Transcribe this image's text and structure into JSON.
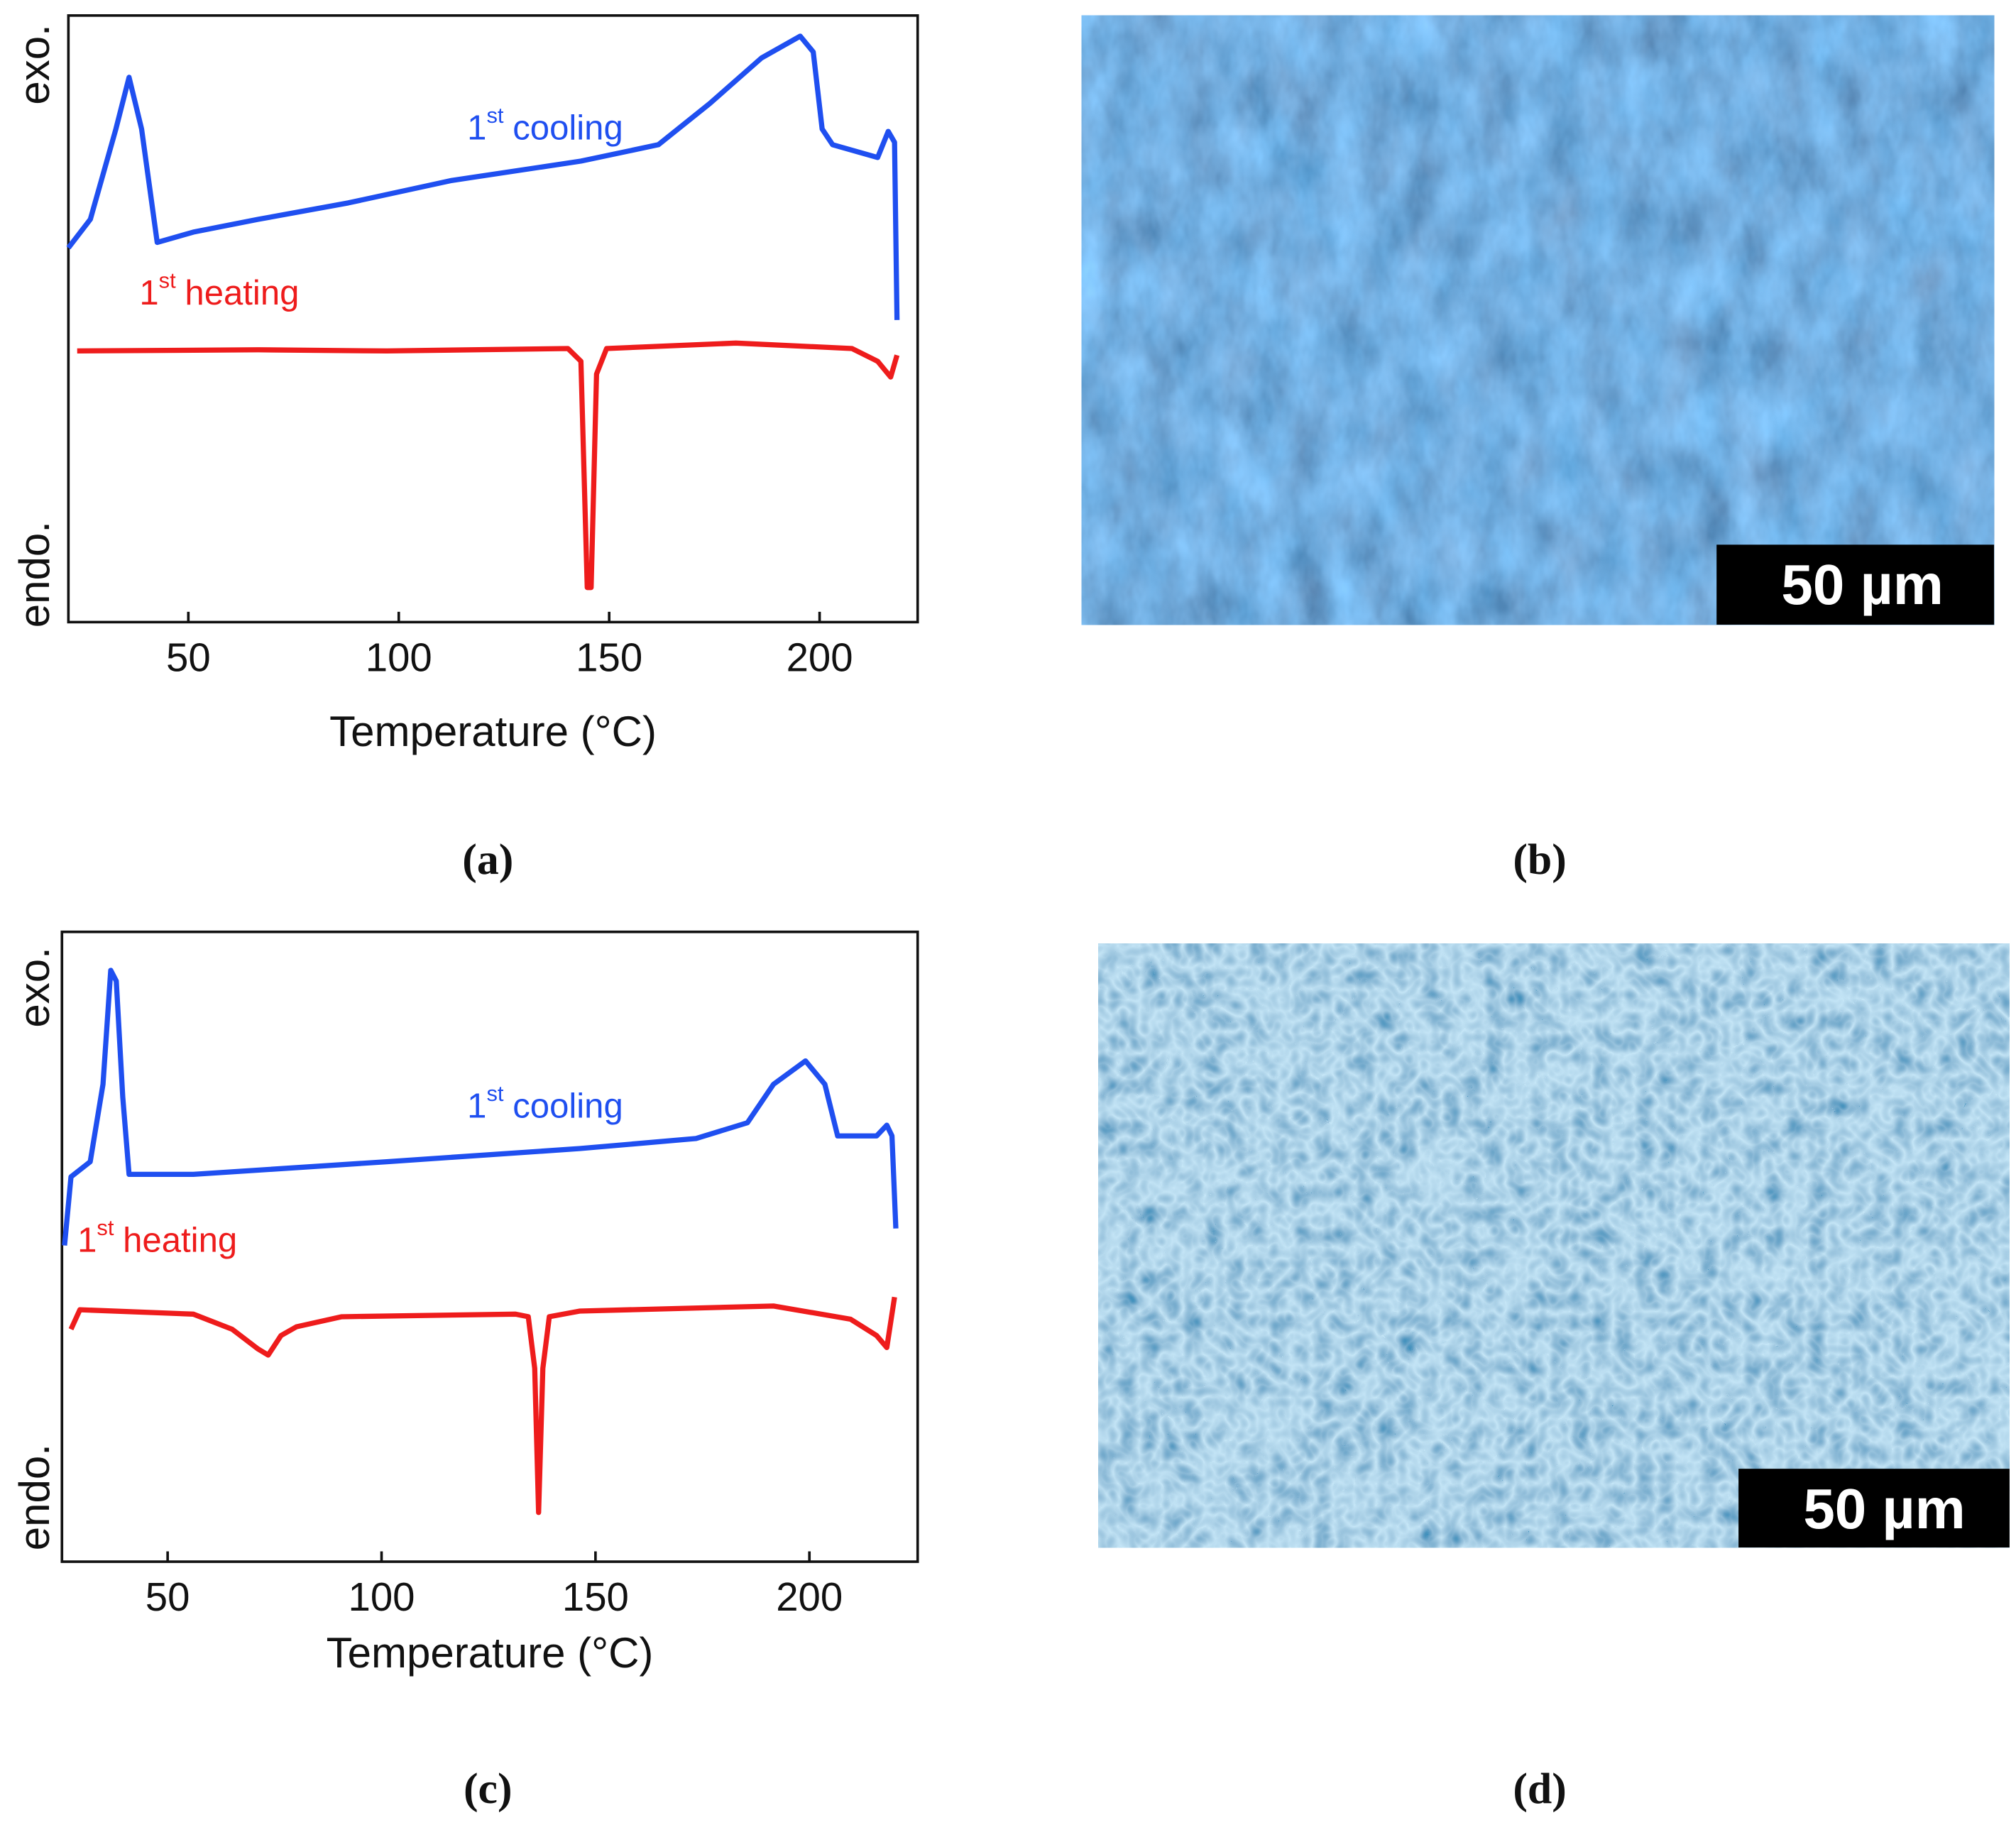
{
  "chart_data": [
    {
      "type": "line",
      "xlabel": "Temperature (°C)",
      "ylabel_top": "exo.",
      "ylabel_bottom": "endo.",
      "xlim": [
        21.5,
        223.3
      ],
      "xticks": [
        50,
        100,
        150,
        200
      ],
      "ylim": [
        0,
        100
      ],
      "series": [
        {
          "label": {
            "number": "1",
            "ordinal": "st",
            "text": "cooling"
          },
          "color": "#1f4ff0",
          "x": [
            21.5,
            26.7,
            32.8,
            35.9,
            38.9,
            42.6,
            51.2,
            66.6,
            88.0,
            112.6,
            143.3,
            161.7,
            173.9,
            186.2,
            195.4,
            198.5,
            200.6,
            203.1,
            213.8,
            216.3,
            217.8,
            218.4
          ],
          "values": [
            61.7,
            66.4,
            81.3,
            89.8,
            81.3,
            62.6,
            64.3,
            66.4,
            69.1,
            72.8,
            76.0,
            78.7,
            85.5,
            93.0,
            96.6,
            94.0,
            81.3,
            78.7,
            76.6,
            80.9,
            79.1,
            49.8
          ]
        },
        {
          "label": {
            "number": "1",
            "ordinal": "st",
            "text": "heating"
          },
          "color": "#ee1c1c",
          "x": [
            23.6,
            66.6,
            97.2,
            140.2,
            143.3,
            144.8,
            145.7,
            147.0,
            149.4,
            180.1,
            207.7,
            213.8,
            216.9,
            218.4
          ],
          "values": [
            44.7,
            44.9,
            44.7,
            45.1,
            43.0,
            5.7,
            5.7,
            40.9,
            45.1,
            46.0,
            45.1,
            43.0,
            40.4,
            44.0
          ]
        }
      ]
    },
    {
      "type": "line",
      "xlabel": "Temperature (°C)",
      "ylabel_top": "exo.",
      "ylabel_bottom": "endo.",
      "xlim": [
        25.3,
        225.3
      ],
      "xticks": [
        50,
        100,
        150,
        200
      ],
      "ylim": [
        0,
        100
      ],
      "series": [
        {
          "label": {
            "number": "1",
            "ordinal": "st",
            "text": "cooling"
          },
          "color": "#1f4ff0",
          "x": [
            25.9,
            27.4,
            31.9,
            34.9,
            36.7,
            38.0,
            39.5,
            41.0,
            56.0,
            101.2,
            146.4,
            173.5,
            185.5,
            191.6,
            199.1,
            203.6,
            206.6,
            215.7,
            218.1,
            219.3,
            220.2
          ],
          "values": [
            50.2,
            61.1,
            63.5,
            75.8,
            93.9,
            92.2,
            73.8,
            61.5,
            61.5,
            63.5,
            65.6,
            67.2,
            69.7,
            75.8,
            79.5,
            75.8,
            67.6,
            67.6,
            69.3,
            67.6,
            52.9
          ]
        },
        {
          "label": {
            "number": "1",
            "ordinal": "st",
            "text": "heating"
          },
          "color": "#ee1c1c",
          "x": [
            27.4,
            29.5,
            56.0,
            65.1,
            71.1,
            73.5,
            76.5,
            80.1,
            90.7,
            131.3,
            134.3,
            135.8,
            136.7,
            137.7,
            139.2,
            146.4,
            191.6,
            209.6,
            215.7,
            218.1,
            219.9
          ],
          "values": [
            36.9,
            40.0,
            39.3,
            36.9,
            33.8,
            32.8,
            35.9,
            37.3,
            38.9,
            39.3,
            38.9,
            30.7,
            7.8,
            30.7,
            38.9,
            39.8,
            40.6,
            38.5,
            35.9,
            34.0,
            42.0
          ]
        }
      ]
    }
  ],
  "panels": [
    "(a)",
    "(b)",
    "(c)",
    "(d)"
  ],
  "micrographs": [
    {
      "scale_bar": "50 µm"
    },
    {
      "scale_bar": "50 µm"
    }
  ]
}
